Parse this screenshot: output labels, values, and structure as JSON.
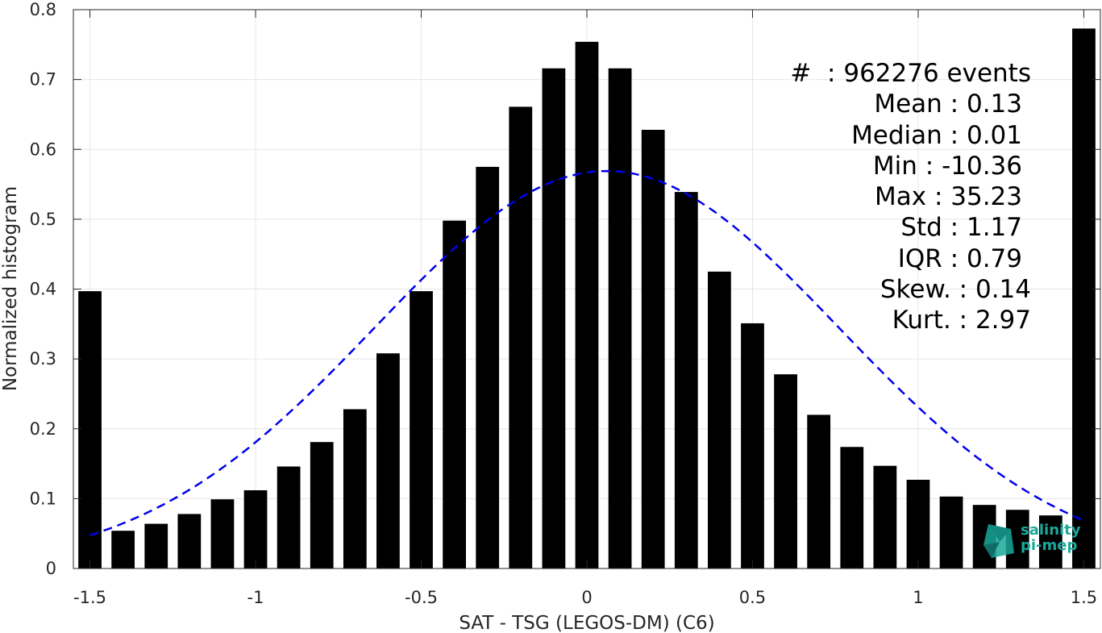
{
  "chart_data": {
    "type": "bar",
    "xlabel": "SAT - TSG (LEGOS-DM) (C6)",
    "ylabel": "Normalized histogram",
    "xlim": [
      -1.55,
      1.55
    ],
    "ylim": [
      0,
      0.8
    ],
    "xticks": [
      -1.5,
      -1,
      -0.5,
      0,
      0.5,
      1,
      1.5
    ],
    "xtick_labels": [
      "-1.5",
      "-1",
      "-0.5",
      "0",
      "0.5",
      "1",
      "1.5"
    ],
    "yticks": [
      0,
      0.1,
      0.2,
      0.3,
      0.4,
      0.5,
      0.6,
      0.7,
      0.8
    ],
    "ytick_labels": [
      "0",
      "0.1",
      "0.2",
      "0.3",
      "0.4",
      "0.5",
      "0.6",
      "0.7",
      "0.8"
    ],
    "grid": true,
    "bar_color": "#000000",
    "bins": [
      -1.5,
      -1.4,
      -1.3,
      -1.2,
      -1.1,
      -1.0,
      -0.9,
      -0.8,
      -0.7,
      -0.6,
      -0.5,
      -0.4,
      -0.3,
      -0.2,
      -0.1,
      0.0,
      0.1,
      0.2,
      0.3,
      0.4,
      0.5,
      0.6,
      0.7,
      0.8,
      0.9,
      1.0,
      1.1,
      1.2,
      1.3,
      1.4,
      1.5
    ],
    "values": [
      0.397,
      0.054,
      0.064,
      0.078,
      0.099,
      0.112,
      0.146,
      0.181,
      0.228,
      0.308,
      0.397,
      0.498,
      0.575,
      0.661,
      0.716,
      0.754,
      0.716,
      0.628,
      0.539,
      0.425,
      0.351,
      0.278,
      0.22,
      0.174,
      0.147,
      0.127,
      0.103,
      0.091,
      0.084,
      0.076,
      0.773
    ],
    "fit_curve": {
      "type": "gaussian",
      "style": "dashed",
      "color": "#0000ee",
      "mean": 0.06,
      "std": 0.7,
      "peak": 0.569,
      "x_range": [
        -1.5,
        1.5
      ]
    },
    "stats": [
      {
        "label": "#  : 962276 events"
      },
      {
        "label": "Mean : 0.13"
      },
      {
        "label": "Median : 0.01"
      },
      {
        "label": "Min : -10.36"
      },
      {
        "label": "Max : 35.23"
      },
      {
        "label": "Std : 1.17"
      },
      {
        "label": "IQR : 0.79"
      },
      {
        "label": "Skew. : 0.14"
      },
      {
        "label": "Kurt. : 2.97"
      }
    ]
  },
  "logo": {
    "line1": "salinity",
    "line2": "pi-mep",
    "color": "#1aa89a"
  }
}
